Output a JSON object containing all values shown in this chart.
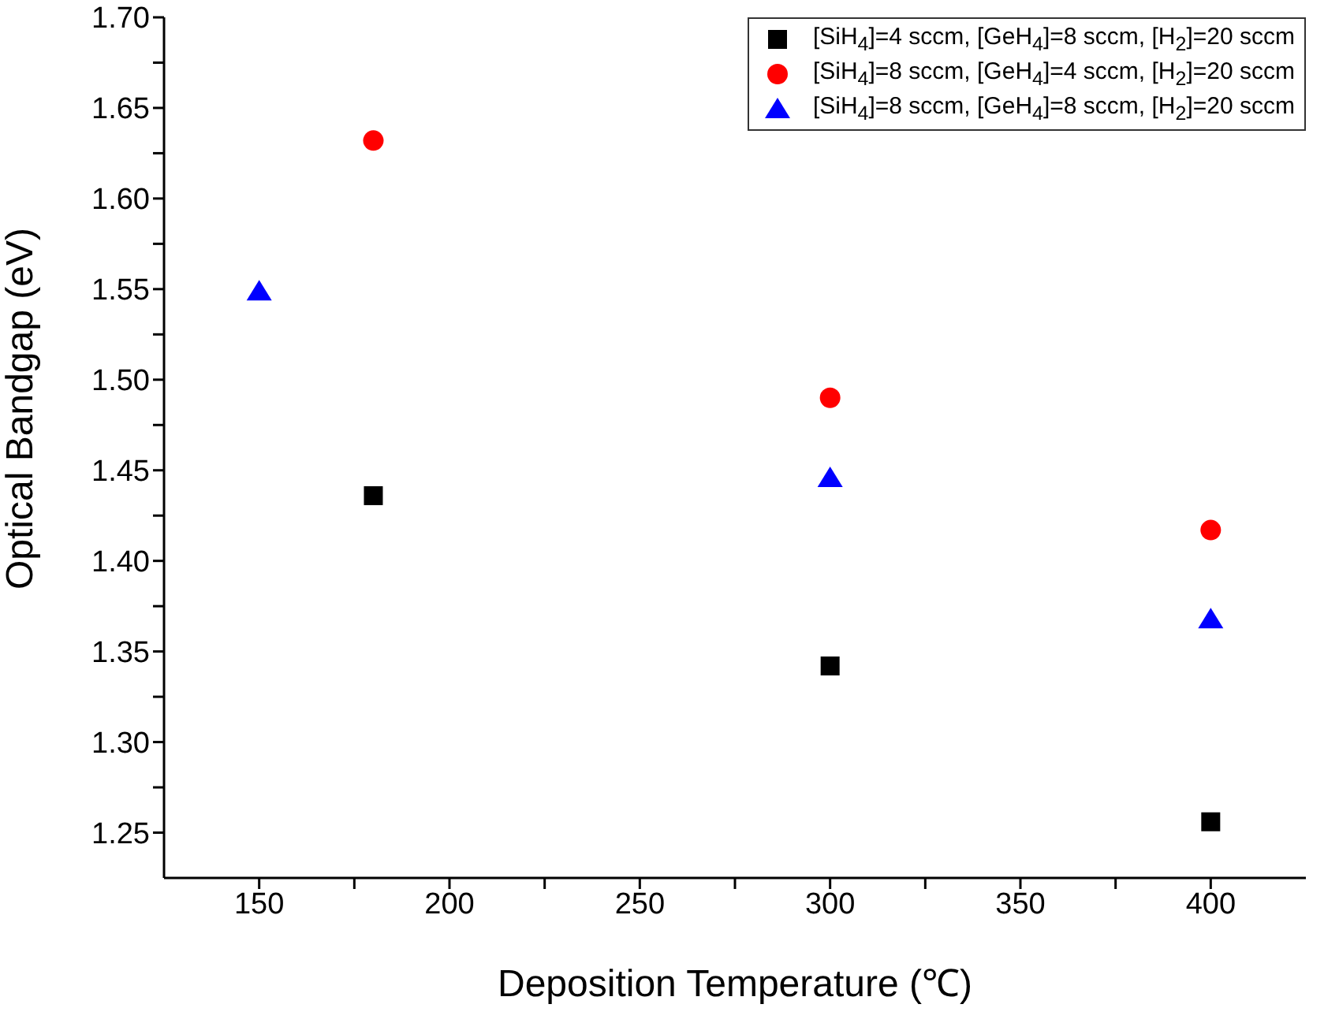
{
  "chart_data": {
    "type": "scatter",
    "xlabel": "Deposition Temperature (℃)",
    "ylabel": "Optical Bandgap (eV)",
    "xlim": [
      125,
      425
    ],
    "xticks": [
      150,
      {
        "value": 175,
        "label": null
      },
      200,
      {
        "value": 225,
        "label": null
      },
      250,
      {
        "value": 275,
        "label": null
      },
      300,
      {
        "value": 325,
        "label": null
      },
      350,
      {
        "value": 375,
        "label": null
      },
      400
    ],
    "ylim": [
      1.225,
      1.7
    ],
    "yticks": [
      1.25,
      {
        "value": 1.275,
        "label": null
      },
      {
        "value": 1.3,
        "label": "1.30"
      },
      {
        "value": 1.325,
        "label": null
      },
      1.35,
      {
        "value": 1.375,
        "label": null
      },
      {
        "value": 1.4,
        "label": "1.40"
      },
      {
        "value": 1.425,
        "label": null
      },
      1.45,
      {
        "value": 1.475,
        "label": null
      },
      {
        "value": 1.5,
        "label": "1.50"
      },
      {
        "value": 1.525,
        "label": null
      },
      1.55,
      {
        "value": 1.575,
        "label": null
      },
      {
        "value": 1.6,
        "label": "1.60"
      },
      {
        "value": 1.625,
        "label": null
      },
      1.65,
      {
        "value": 1.675,
        "label": null
      },
      {
        "value": 1.7,
        "label": "1.70"
      }
    ],
    "legend": "top right",
    "grid": false,
    "series": [
      {
        "name": "[SiH$_{4}$]=4 sccm, [GeH$_{4}$]=8 sccm, [H$_{2}$]=20 sccm",
        "color": "#000000",
        "marker": "square",
        "x": [
          180,
          300,
          400
        ],
        "values": [
          1.436,
          1.342,
          1.256
        ]
      },
      {
        "name": "[SiH$_{4}$]=8 sccm, [GeH$_{4}$]=4 sccm, [H$_{2}$]=20 sccm",
        "color": "#ff0000",
        "marker": "circle",
        "x": [
          180,
          300,
          400
        ],
        "values": [
          1.632,
          1.49,
          1.417
        ]
      },
      {
        "name": "[SiH$_{4}$]=8 sccm, [GeH$_{4}$]=8 sccm, [H$_{2}$]=20 sccm",
        "color": "#0000ff",
        "marker": "triangle",
        "x": [
          150,
          300,
          400
        ],
        "values": [
          1.549,
          1.446,
          1.368
        ]
      }
    ]
  }
}
